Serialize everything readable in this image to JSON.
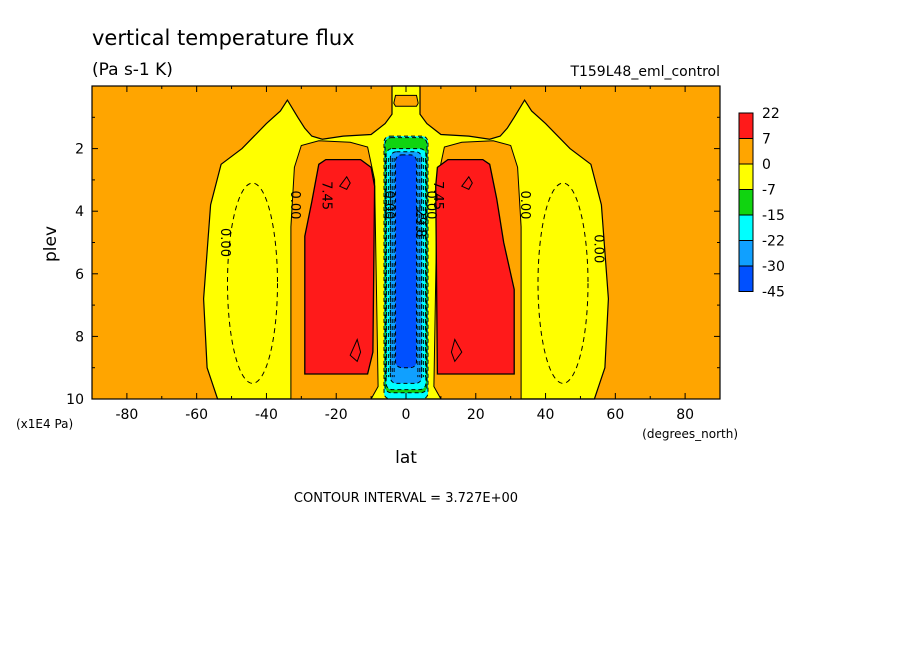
{
  "chart_data": {
    "type": "heatmap",
    "title": "vertical temperature flux",
    "subtitle": "(Pa s-1 K)",
    "run_label": "T159L48_eml_control",
    "xlabel": "lat",
    "xunit": "(degrees_north)",
    "ylabel": "plev",
    "yunit": "(x1E4 Pa)",
    "footer": "CONTOUR INTERVAL = 3.727E+00",
    "xlim": [
      -90,
      90
    ],
    "ylim": [
      10,
      0
    ],
    "x_ticks": [
      -80,
      -60,
      -40,
      -20,
      0,
      20,
      40,
      60,
      80
    ],
    "y_ticks": [
      2,
      4,
      6,
      8,
      10
    ],
    "grid": false,
    "legend_placement": "right",
    "colorbar": {
      "labels": [
        "22",
        "7",
        "0",
        "-7",
        "-15",
        "-22",
        "-30",
        "-45"
      ],
      "colors": [
        "#ff1a1a",
        "#ffa500",
        "#ffff00",
        "#10d410",
        "#00ffff",
        "#10a0ff",
        "#0050ff"
      ]
    },
    "regions": [
      {
        "name": "south-red",
        "value_range": [
          7,
          22
        ],
        "lat": [
          -29,
          -8
        ],
        "plev": [
          2.4,
          9.2
        ]
      },
      {
        "name": "north-red",
        "value_range": [
          7,
          22
        ],
        "lat": [
          9,
          31
        ],
        "plev": [
          2.4,
          9.2
        ]
      },
      {
        "name": "equatorial-blue",
        "value_range": [
          -45,
          -22
        ],
        "lat": [
          -3,
          3
        ],
        "plev": [
          2.2,
          9.0
        ]
      },
      {
        "name": "south-yellow",
        "value_range": [
          -7,
          0
        ],
        "lat": [
          -55,
          -34
        ],
        "plev": [
          1.6,
          10
        ]
      },
      {
        "name": "north-yellow",
        "value_range": [
          -7,
          0
        ],
        "lat": [
          34,
          56
        ],
        "plev": [
          1.6,
          10
        ]
      }
    ],
    "contour_labels": [
      {
        "text": "0.00",
        "lat": -53,
        "plev": 5.0
      },
      {
        "text": "0.00",
        "lat": -33,
        "plev": 3.8
      },
      {
        "text": "7.45",
        "lat": -24,
        "plev": 3.5
      },
      {
        "text": "0.00",
        "lat": 33,
        "plev": 3.8
      },
      {
        "text": "0.00",
        "lat": 54,
        "plev": 5.2
      },
      {
        "text": "7.45",
        "lat": 8,
        "plev": 3.5
      },
      {
        "text": "-29.8",
        "lat": 3,
        "plev": 4.3
      },
      {
        "text": "0.00",
        "lat": -6,
        "plev": 3.8
      },
      {
        "text": "0.00",
        "lat": 6,
        "plev": 3.8
      }
    ]
  }
}
